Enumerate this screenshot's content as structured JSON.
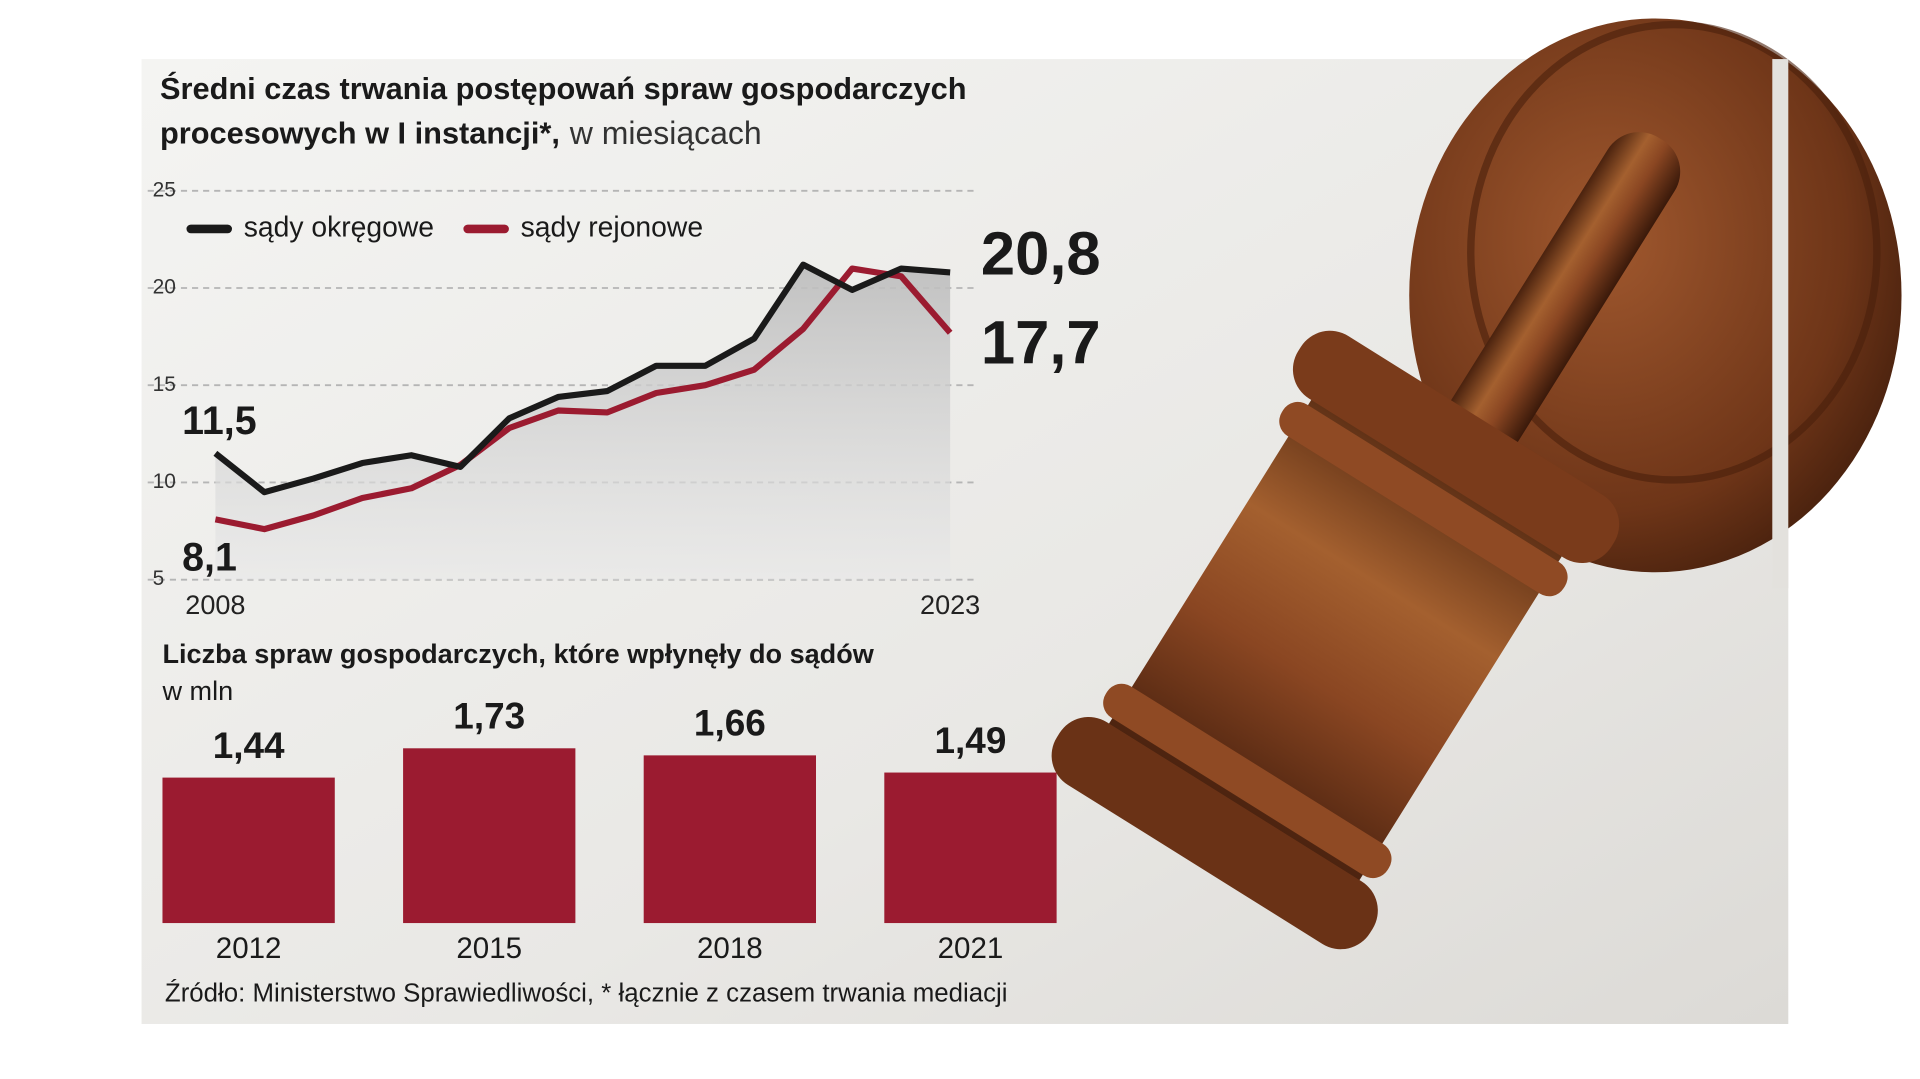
{
  "chart_data": [
    {
      "type": "line",
      "title": [
        "Średni czas trwania postępowań spraw gospodarczych",
        "procesowych w I instancji*,"
      ],
      "subtitle": "w miesiącach",
      "x": [
        2008,
        2009,
        2010,
        2011,
        2012,
        2013,
        2014,
        2015,
        2016,
        2017,
        2018,
        2019,
        2020,
        2021,
        2022,
        2023
      ],
      "xlim": [
        2008,
        2023
      ],
      "xticks": [
        2008,
        2023
      ],
      "ylim": [
        5,
        25
      ],
      "yticks": [
        5,
        10,
        15,
        20,
        25
      ],
      "grid": true,
      "series": [
        {
          "name": "sądy okręgowe",
          "color": "#1a1a1a",
          "values": [
            11.5,
            9.5,
            10.2,
            11.0,
            11.4,
            10.8,
            13.3,
            14.4,
            14.7,
            16.0,
            16.0,
            17.4,
            21.2,
            19.9,
            21.0,
            20.8
          ],
          "value_labels": [
            "11,5",
            null,
            null,
            null,
            null,
            null,
            null,
            null,
            null,
            null,
            null,
            null,
            null,
            null,
            null,
            "20,8"
          ]
        },
        {
          "name": "sądy rejonowe",
          "color": "#9b1b30",
          "values": [
            8.1,
            7.6,
            8.3,
            9.2,
            9.7,
            10.9,
            12.8,
            13.7,
            13.6,
            14.6,
            15.0,
            15.8,
            17.9,
            21.0,
            20.6,
            17.7
          ],
          "value_labels": [
            "8,1",
            null,
            null,
            null,
            null,
            null,
            null,
            null,
            null,
            null,
            null,
            null,
            null,
            null,
            null,
            "17,7"
          ]
        }
      ]
    },
    {
      "type": "bar",
      "title": "Liczba spraw gospodarczych, które wpłynęły do sądów",
      "subtitle": "w mln",
      "categories": [
        "2012",
        "2015",
        "2018",
        "2021"
      ],
      "values": [
        1.44,
        1.73,
        1.66,
        1.49
      ],
      "value_labels": [
        "1,44",
        "1,73",
        "1,66",
        "1,49"
      ],
      "color": "#9b1b30"
    }
  ],
  "source": "Źródło: Ministerstwo Sprawiedliwości, * łącznie z czasem trwania mediacji"
}
